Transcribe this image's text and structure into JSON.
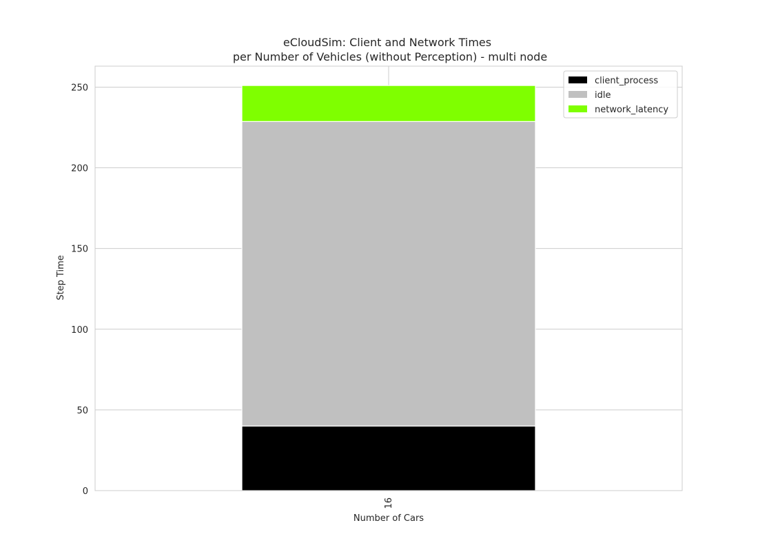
{
  "chart_data": {
    "type": "bar",
    "stacked": true,
    "title": "eCloudSim: Client and Network Times",
    "subtitle": "per Number of Vehicles (without Perception) - multi node",
    "xlabel": "Number of Cars",
    "ylabel": "Step Time",
    "categories": [
      "16"
    ],
    "ylim": [
      0,
      263
    ],
    "yticks": [
      0,
      50,
      100,
      150,
      200,
      250
    ],
    "grid": true,
    "legend_position": "top-right",
    "series": [
      {
        "name": "client_process",
        "values": [
          40.0
        ],
        "color": "#000000"
      },
      {
        "name": "idle",
        "values": [
          188.7
        ],
        "color": "#c0c0c0"
      },
      {
        "name": "network_latency",
        "values": [
          22.3
        ],
        "color": "#7fff00"
      }
    ]
  }
}
